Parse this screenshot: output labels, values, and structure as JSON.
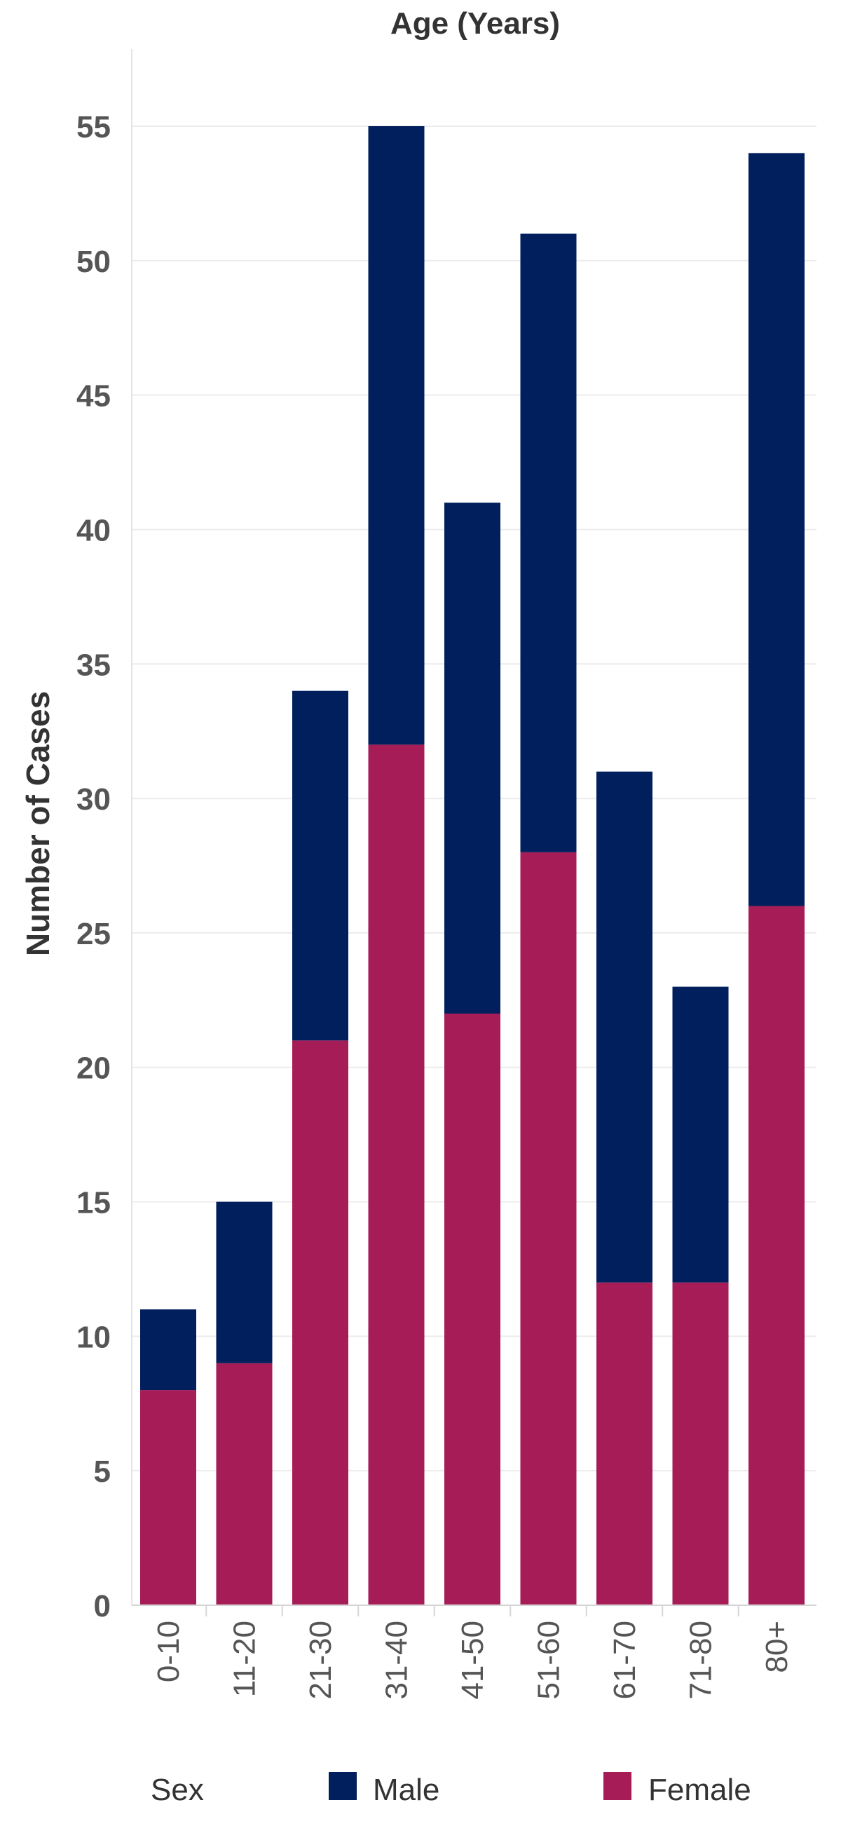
{
  "chart_data": {
    "type": "bar",
    "stacked": true,
    "title": "Age (Years)",
    "xlabel": "",
    "ylabel": "Number of Cases",
    "ylim": [
      0,
      57
    ],
    "yticks": [
      0,
      5,
      10,
      15,
      20,
      25,
      30,
      35,
      40,
      45,
      50,
      55
    ],
    "grid": true,
    "categories": [
      "0-10",
      "11-20",
      "21-30",
      "31-40",
      "41-50",
      "51-60",
      "61-70",
      "71-80",
      "80+"
    ],
    "series": [
      {
        "name": "Female",
        "values": [
          8,
          9,
          21,
          32,
          22,
          28,
          12,
          12,
          26
        ]
      },
      {
        "name": "Male",
        "values": [
          3,
          6,
          13,
          23,
          19,
          23,
          19,
          11,
          28
        ]
      }
    ],
    "colors": {
      "Male": "#001f5c",
      "Female": "#a51c56"
    },
    "legend": {
      "title": "Sex",
      "placement": "bottom",
      "items": [
        "Male",
        "Female"
      ]
    }
  }
}
